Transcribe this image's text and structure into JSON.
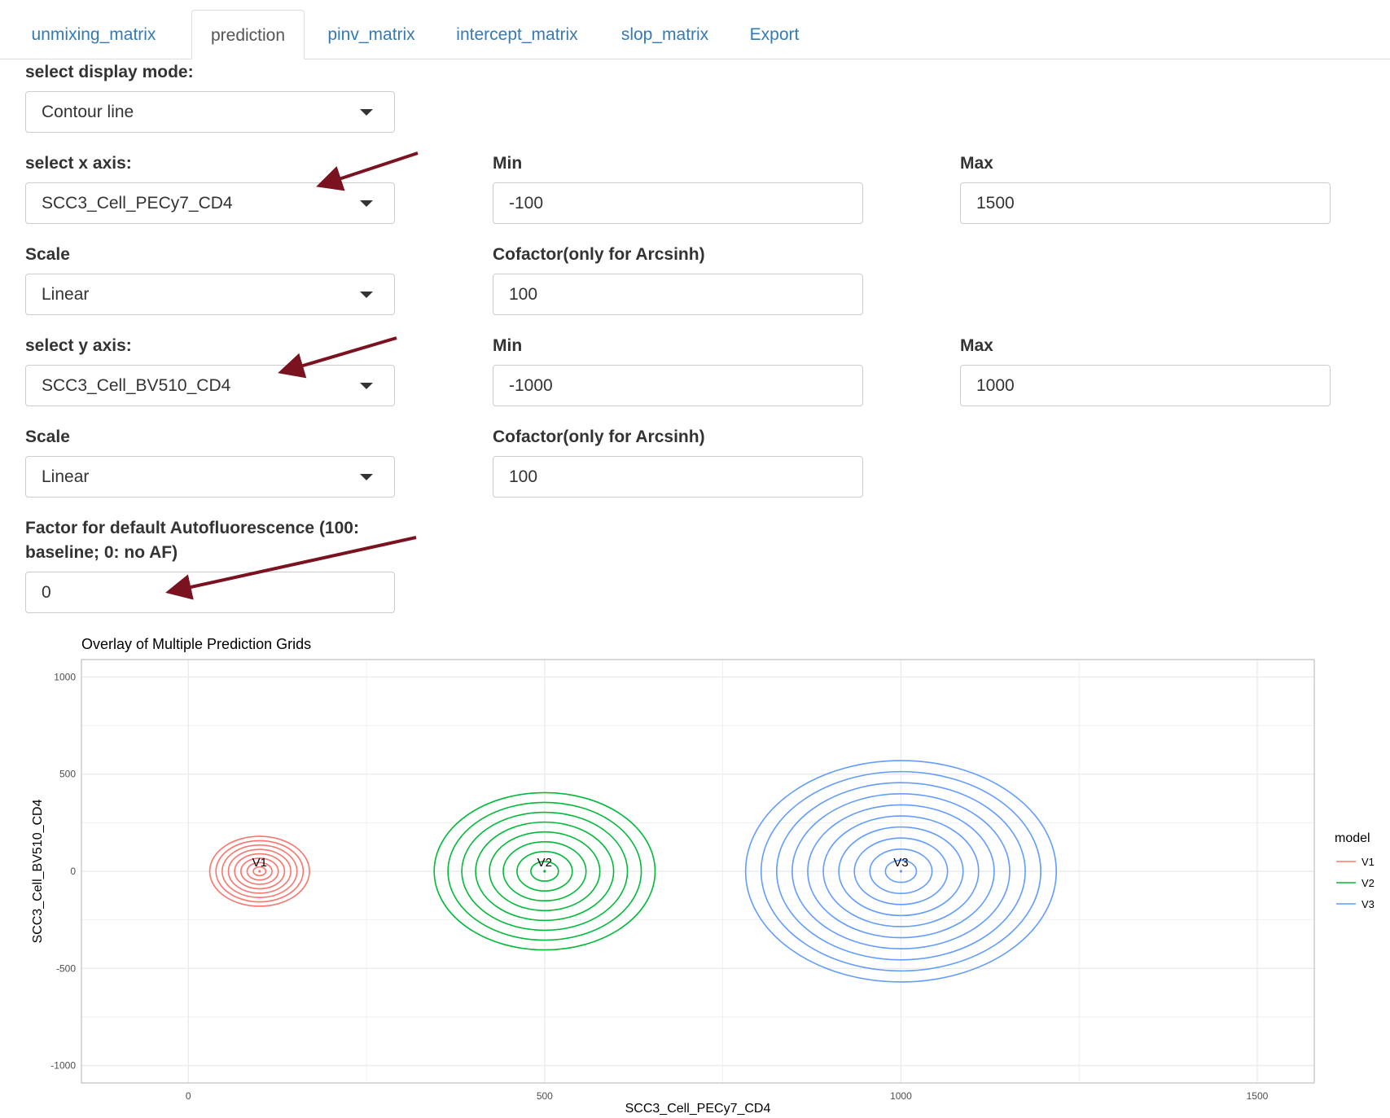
{
  "tabs": [
    {
      "label": "unmixing_matrix",
      "active": false
    },
    {
      "label": "prediction",
      "active": true
    },
    {
      "label": "pinv_matrix",
      "active": false
    },
    {
      "label": "intercept_matrix",
      "active": false
    },
    {
      "label": "slop_matrix",
      "active": false
    },
    {
      "label": "Export",
      "active": false
    }
  ],
  "form": {
    "display_mode": {
      "label": "select display mode:",
      "value": "Contour line"
    },
    "x_axis": {
      "label": "select x axis:",
      "value": "SCC3_Cell_PECy7_CD4",
      "min_label": "Min",
      "min_value": "-100",
      "max_label": "Max",
      "max_value": "1500",
      "scale_label": "Scale",
      "scale_value": "Linear",
      "cofactor_label": "Cofactor(only for Arcsinh)",
      "cofactor_value": "100"
    },
    "y_axis": {
      "label": "select y axis:",
      "value": "SCC3_Cell_BV510_CD4",
      "min_label": "Min",
      "min_value": "-1000",
      "max_label": "Max",
      "max_value": "1000",
      "scale_label": "Scale",
      "scale_value": "Linear",
      "cofactor_label": "Cofactor(only for Arcsinh)",
      "cofactor_value": "100"
    },
    "af_factor": {
      "label_line1": "Factor for default Autofluorescence (100:",
      "label_line2": "baseline; 0: no AF)",
      "value": "0"
    }
  },
  "annotation_color": "#7b1220",
  "chart_data": {
    "type": "contour",
    "title": "Overlay of Multiple Prediction Grids",
    "xlabel": "SCC3_Cell_PECy7_CD4",
    "ylabel": "SCC3_Cell_BV510_CD4",
    "xlim": [
      -150,
      1580
    ],
    "ylim": [
      -1090,
      1090
    ],
    "xticks": [
      0,
      500,
      1000,
      1500
    ],
    "yticks": [
      1000,
      500,
      0,
      -500,
      -1000
    ],
    "grid": true,
    "legend_title": "model",
    "legend_position": "right",
    "series": [
      {
        "name": "V1",
        "color": "#f8766d",
        "center": [
          100,
          0
        ],
        "rx_max": 70,
        "ry_max": 180,
        "levels": 8
      },
      {
        "name": "V2",
        "color": "#00ba38",
        "center": [
          500,
          0
        ],
        "rx_max": 155,
        "ry_max": 405,
        "levels": 8
      },
      {
        "name": "V3",
        "color": "#619cff",
        "center": [
          1000,
          0
        ],
        "rx_max": 218,
        "ry_max": 570,
        "levels": 10
      }
    ]
  }
}
